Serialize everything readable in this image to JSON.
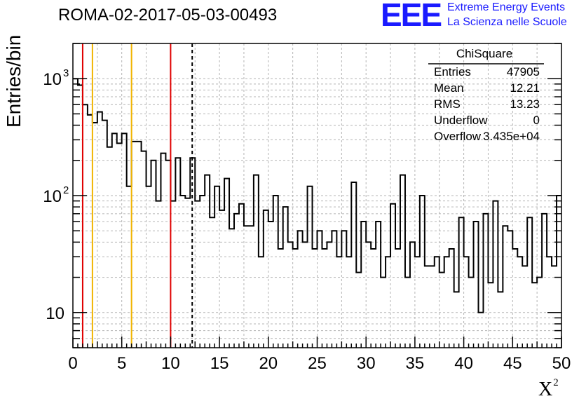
{
  "title": "ROMA-02-2017-05-03-00493",
  "logo": {
    "mark": "EEE",
    "line1": "Extreme Energy Events",
    "line2": "La Scienza nelle Scuole",
    "color": "#1a1aff"
  },
  "stats": {
    "title": "ChiSquare",
    "rows": [
      {
        "key": "Entries",
        "value": "47905"
      },
      {
        "key": "Mean",
        "value": "12.21"
      },
      {
        "key": "RMS",
        "value": "13.23"
      },
      {
        "key": "Underflow",
        "value": "0"
      },
      {
        "key": "Overflow",
        "value": "3.435e+04"
      }
    ]
  },
  "chart_data": {
    "type": "histogram",
    "title": "ROMA-02-2017-05-03-00493",
    "xlabel": "X",
    "xlabel_superscript": "2",
    "ylabel": "Entries/bin",
    "xlim": [
      0,
      50
    ],
    "ylim": [
      5,
      2000
    ],
    "y_scale": "log",
    "grid": true,
    "bin_width": 0.5,
    "x_ticks": [
      "0",
      "5",
      "10",
      "15",
      "20",
      "25",
      "30",
      "35",
      "40",
      "45",
      "50"
    ],
    "y_tick_labels": [
      {
        "value": 10,
        "label": "10"
      },
      {
        "value": 100,
        "label": "10",
        "exponent": "2"
      },
      {
        "value": 1000,
        "label": "10",
        "exponent": "3"
      }
    ],
    "values": [
      1000,
      880,
      600,
      490,
      420,
      520,
      440,
      260,
      340,
      280,
      340,
      120,
      290,
      290,
      240,
      120,
      200,
      90,
      230,
      200,
      90,
      210,
      100,
      95,
      210,
      90,
      100,
      150,
      65,
      120,
      75,
      140,
      52,
      70,
      85,
      55,
      55,
      150,
      30,
      75,
      60,
      100,
      35,
      80,
      40,
      35,
      50,
      40,
      120,
      35,
      50,
      35,
      40,
      50,
      30,
      50,
      30,
      130,
      22,
      60,
      40,
      35,
      60,
      20,
      30,
      85,
      35,
      150,
      20,
      40,
      30,
      100,
      25,
      25,
      30,
      22,
      30,
      35,
      15,
      65,
      30,
      20,
      60,
      10,
      70,
      18,
      90,
      15,
      55,
      50,
      35,
      30,
      25,
      65,
      18,
      20,
      70,
      30,
      25,
      100
    ],
    "vertical_markers": [
      {
        "x": 1,
        "color": "#e00000",
        "style": "solid"
      },
      {
        "x": 2,
        "color": "#f0b400",
        "style": "solid"
      },
      {
        "x": 6,
        "color": "#f0b400",
        "style": "solid"
      },
      {
        "x": 10,
        "color": "#e00000",
        "style": "solid"
      },
      {
        "x": 12.21,
        "color": "#000000",
        "style": "dashed"
      }
    ]
  }
}
